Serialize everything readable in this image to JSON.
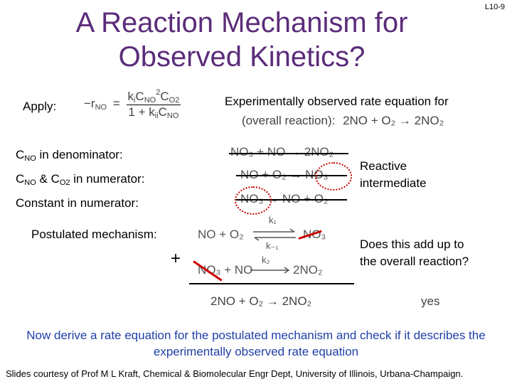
{
  "slide_id": "L10-9",
  "title_line1": "A Reaction Mechanism for",
  "title_line2": "Observed Kinetics?",
  "apply_label": "Apply:",
  "rate_eq": {
    "lhs": "−r",
    "lhs_sub": "NO",
    "equals": "=",
    "num_k": "k",
    "num_k_sub": "i",
    "num_c1": "C",
    "num_c1_sub": "NO",
    "num_c1_sup": "2",
    "num_c2": "C",
    "num_c2_sub": "O2",
    "den_1": "1 + k",
    "den_k_sub": "ii",
    "den_c": "C",
    "den_c_sub": "NO"
  },
  "exp_line1": "Experimentally observed rate equation for",
  "exp_line2_prefix": "(overall reaction):",
  "overall_reaction": "2NO + O₂ → 2NO₂",
  "left_labels": {
    "c_no_denominator": "C",
    "c_no_denominator_sub": "NO",
    "c_no_denominator_rest": " in denominator:",
    "c_numerator_a": "C",
    "c_numerator_a_sub": "NO",
    "c_numerator_mid": " & C",
    "c_numerator_b_sub": "O2",
    "c_numerator_rest": " in numerator:",
    "constant": "Constant in numerator:"
  },
  "candidate_rxns": {
    "r1": "NO₃ + NO → 2NO₂",
    "r2": "NO + O₂ → NO₃",
    "r3": "NO₃ → NO + O₂"
  },
  "reactive_intermediate": [
    "Reactive",
    "intermediate"
  ],
  "postulated_label": "Postulated mechanism:",
  "plus_sign": "+",
  "mechanism": {
    "step1_left": "NO + O₂",
    "step1_right": "NO₃",
    "k1": "k₁",
    "k_minus1": "k₋₁",
    "step2_left": "NO₃ + NO",
    "step2_right": "2NO₂",
    "k2": "k₂",
    "sum": "2NO + O₂ → 2NO₂"
  },
  "question": [
    "Does this add up to",
    "the overall reaction?"
  ],
  "answer": "yes",
  "bottom_text": "Now derive a rate equation for the postulated mechanism and check if it describes the experimentally observed rate equation",
  "credit": "Slides courtesy of Prof M L Kraft, Chemical & Biomolecular Engr Dept, University of Illinois, Urbana-Champaign.",
  "colors": {
    "title": "#5b2c7a",
    "accent_red": "#cc0000",
    "bottom_blue": "#1f3fa6"
  }
}
